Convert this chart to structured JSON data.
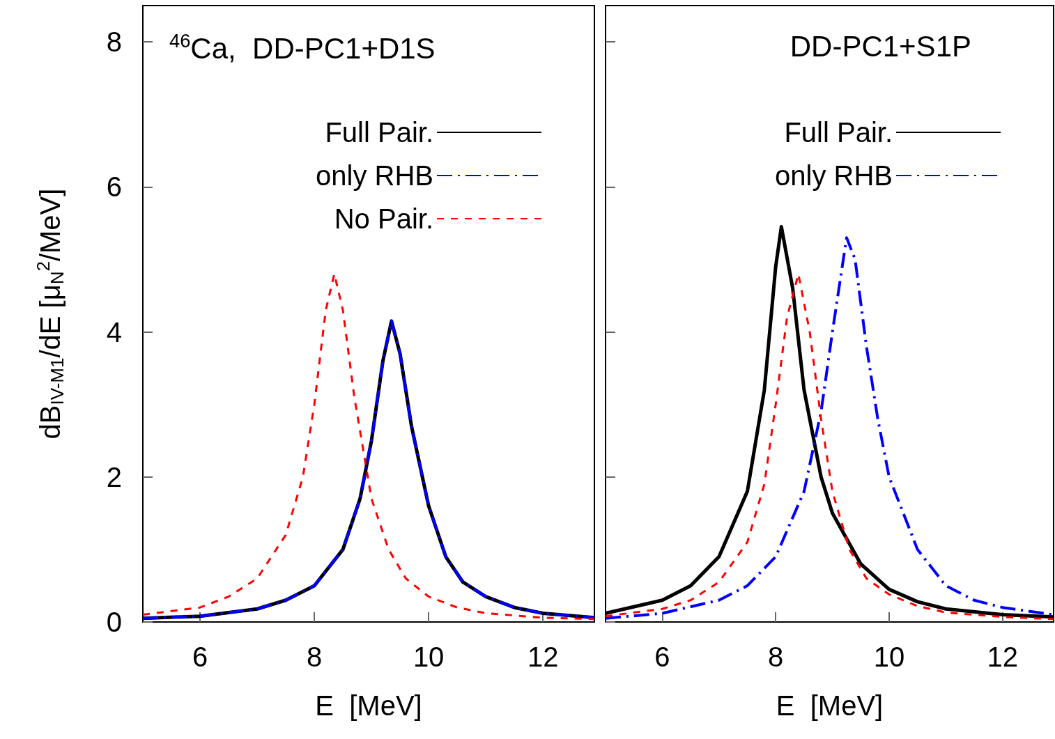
{
  "chart_data": [
    {
      "type": "line",
      "xlabel": "E  [MeV]",
      "ylabel": "dB$_{IV-M1}$/dE [μ$_{N}$$^{2}$/MeV]",
      "annotations": [
        "$^{46}$Ca,  DD-PC1+D1S"
      ],
      "xlim": [
        5,
        12.9
      ],
      "ylim": [
        0,
        8.5
      ],
      "xticks": [
        6,
        8,
        10,
        12
      ],
      "yticks": [
        0,
        2,
        4,
        6,
        8
      ],
      "legend": "top right",
      "series": [
        {
          "name": "Full Pair.",
          "color": "#000000",
          "line_style": "solid",
          "x": [
            5,
            6,
            7,
            7.5,
            8,
            8.5,
            8.8,
            9.0,
            9.2,
            9.35,
            9.5,
            9.7,
            10,
            10.3,
            10.6,
            11,
            11.5,
            12,
            12.9
          ],
          "values": [
            0.05,
            0.08,
            0.18,
            0.3,
            0.5,
            1.0,
            1.7,
            2.5,
            3.6,
            4.15,
            3.7,
            2.7,
            1.6,
            0.9,
            0.55,
            0.35,
            0.2,
            0.12,
            0.06
          ]
        },
        {
          "name": "only RHB",
          "color": "#0000ff",
          "line_style": "dashdot",
          "x": [
            5,
            6,
            7,
            7.5,
            8,
            8.5,
            8.8,
            9.0,
            9.2,
            9.35,
            9.5,
            9.7,
            10,
            10.3,
            10.6,
            11,
            11.5,
            12,
            12.9
          ],
          "values": [
            0.05,
            0.08,
            0.18,
            0.3,
            0.5,
            1.0,
            1.7,
            2.5,
            3.6,
            4.15,
            3.7,
            2.7,
            1.6,
            0.9,
            0.55,
            0.35,
            0.2,
            0.12,
            0.06
          ]
        },
        {
          "name": "No Pair.",
          "color": "#ff0000",
          "line_style": "dashed",
          "x": [
            5,
            6,
            6.5,
            7,
            7.5,
            7.8,
            8.0,
            8.2,
            8.35,
            8.5,
            8.7,
            9.0,
            9.3,
            9.6,
            10,
            10.5,
            11,
            12,
            12.9
          ],
          "values": [
            0.1,
            0.2,
            0.35,
            0.6,
            1.2,
            2.0,
            3.0,
            4.3,
            4.8,
            4.3,
            3.1,
            1.7,
            1.0,
            0.6,
            0.35,
            0.2,
            0.12,
            0.06,
            0.04
          ]
        }
      ]
    },
    {
      "type": "line",
      "xlabel": "E  [MeV]",
      "annotations": [
        "DD-PC1+S1P"
      ],
      "xlim": [
        5,
        12.9
      ],
      "ylim": [
        0,
        8.5
      ],
      "xticks": [
        6,
        8,
        10,
        12
      ],
      "yticks": [
        0,
        2,
        4,
        6,
        8
      ],
      "tick_labels": "x",
      "legend": "top right",
      "series": [
        {
          "name": "Full Pair.",
          "color": "#000000",
          "line_style": "solid",
          "x": [
            5,
            6,
            6.5,
            7,
            7.5,
            7.8,
            8.0,
            8.1,
            8.3,
            8.5,
            8.8,
            9.0,
            9.5,
            10,
            10.5,
            11,
            12,
            12.9
          ],
          "values": [
            0.12,
            0.3,
            0.5,
            0.9,
            1.8,
            3.2,
            4.9,
            5.45,
            4.6,
            3.2,
            2.0,
            1.5,
            0.8,
            0.45,
            0.28,
            0.18,
            0.1,
            0.07
          ]
        },
        {
          "name": "only RHB",
          "color": "#0000ff",
          "line_style": "dashdot",
          "x": [
            5,
            6,
            7,
            7.5,
            8,
            8.5,
            8.8,
            9.0,
            9.25,
            9.4,
            9.6,
            9.8,
            10,
            10.5,
            11,
            11.5,
            12,
            12.9
          ],
          "values": [
            0.05,
            0.12,
            0.3,
            0.5,
            0.9,
            1.8,
            2.9,
            4.0,
            5.3,
            5.0,
            3.8,
            2.8,
            2.0,
            1.0,
            0.5,
            0.3,
            0.2,
            0.1
          ]
        },
        {
          "color": "#ff0000",
          "line_style": "dashed",
          "x": [
            5,
            6,
            6.5,
            7,
            7.5,
            7.8,
            8.0,
            8.2,
            8.4,
            8.6,
            8.8,
            9.0,
            9.3,
            9.6,
            10,
            10.5,
            11,
            12,
            12.9
          ],
          "values": [
            0.08,
            0.18,
            0.3,
            0.55,
            1.1,
            1.9,
            3.0,
            4.2,
            4.8,
            4.0,
            2.8,
            1.8,
            1.0,
            0.6,
            0.38,
            0.22,
            0.13,
            0.07,
            0.04
          ]
        }
      ]
    }
  ]
}
